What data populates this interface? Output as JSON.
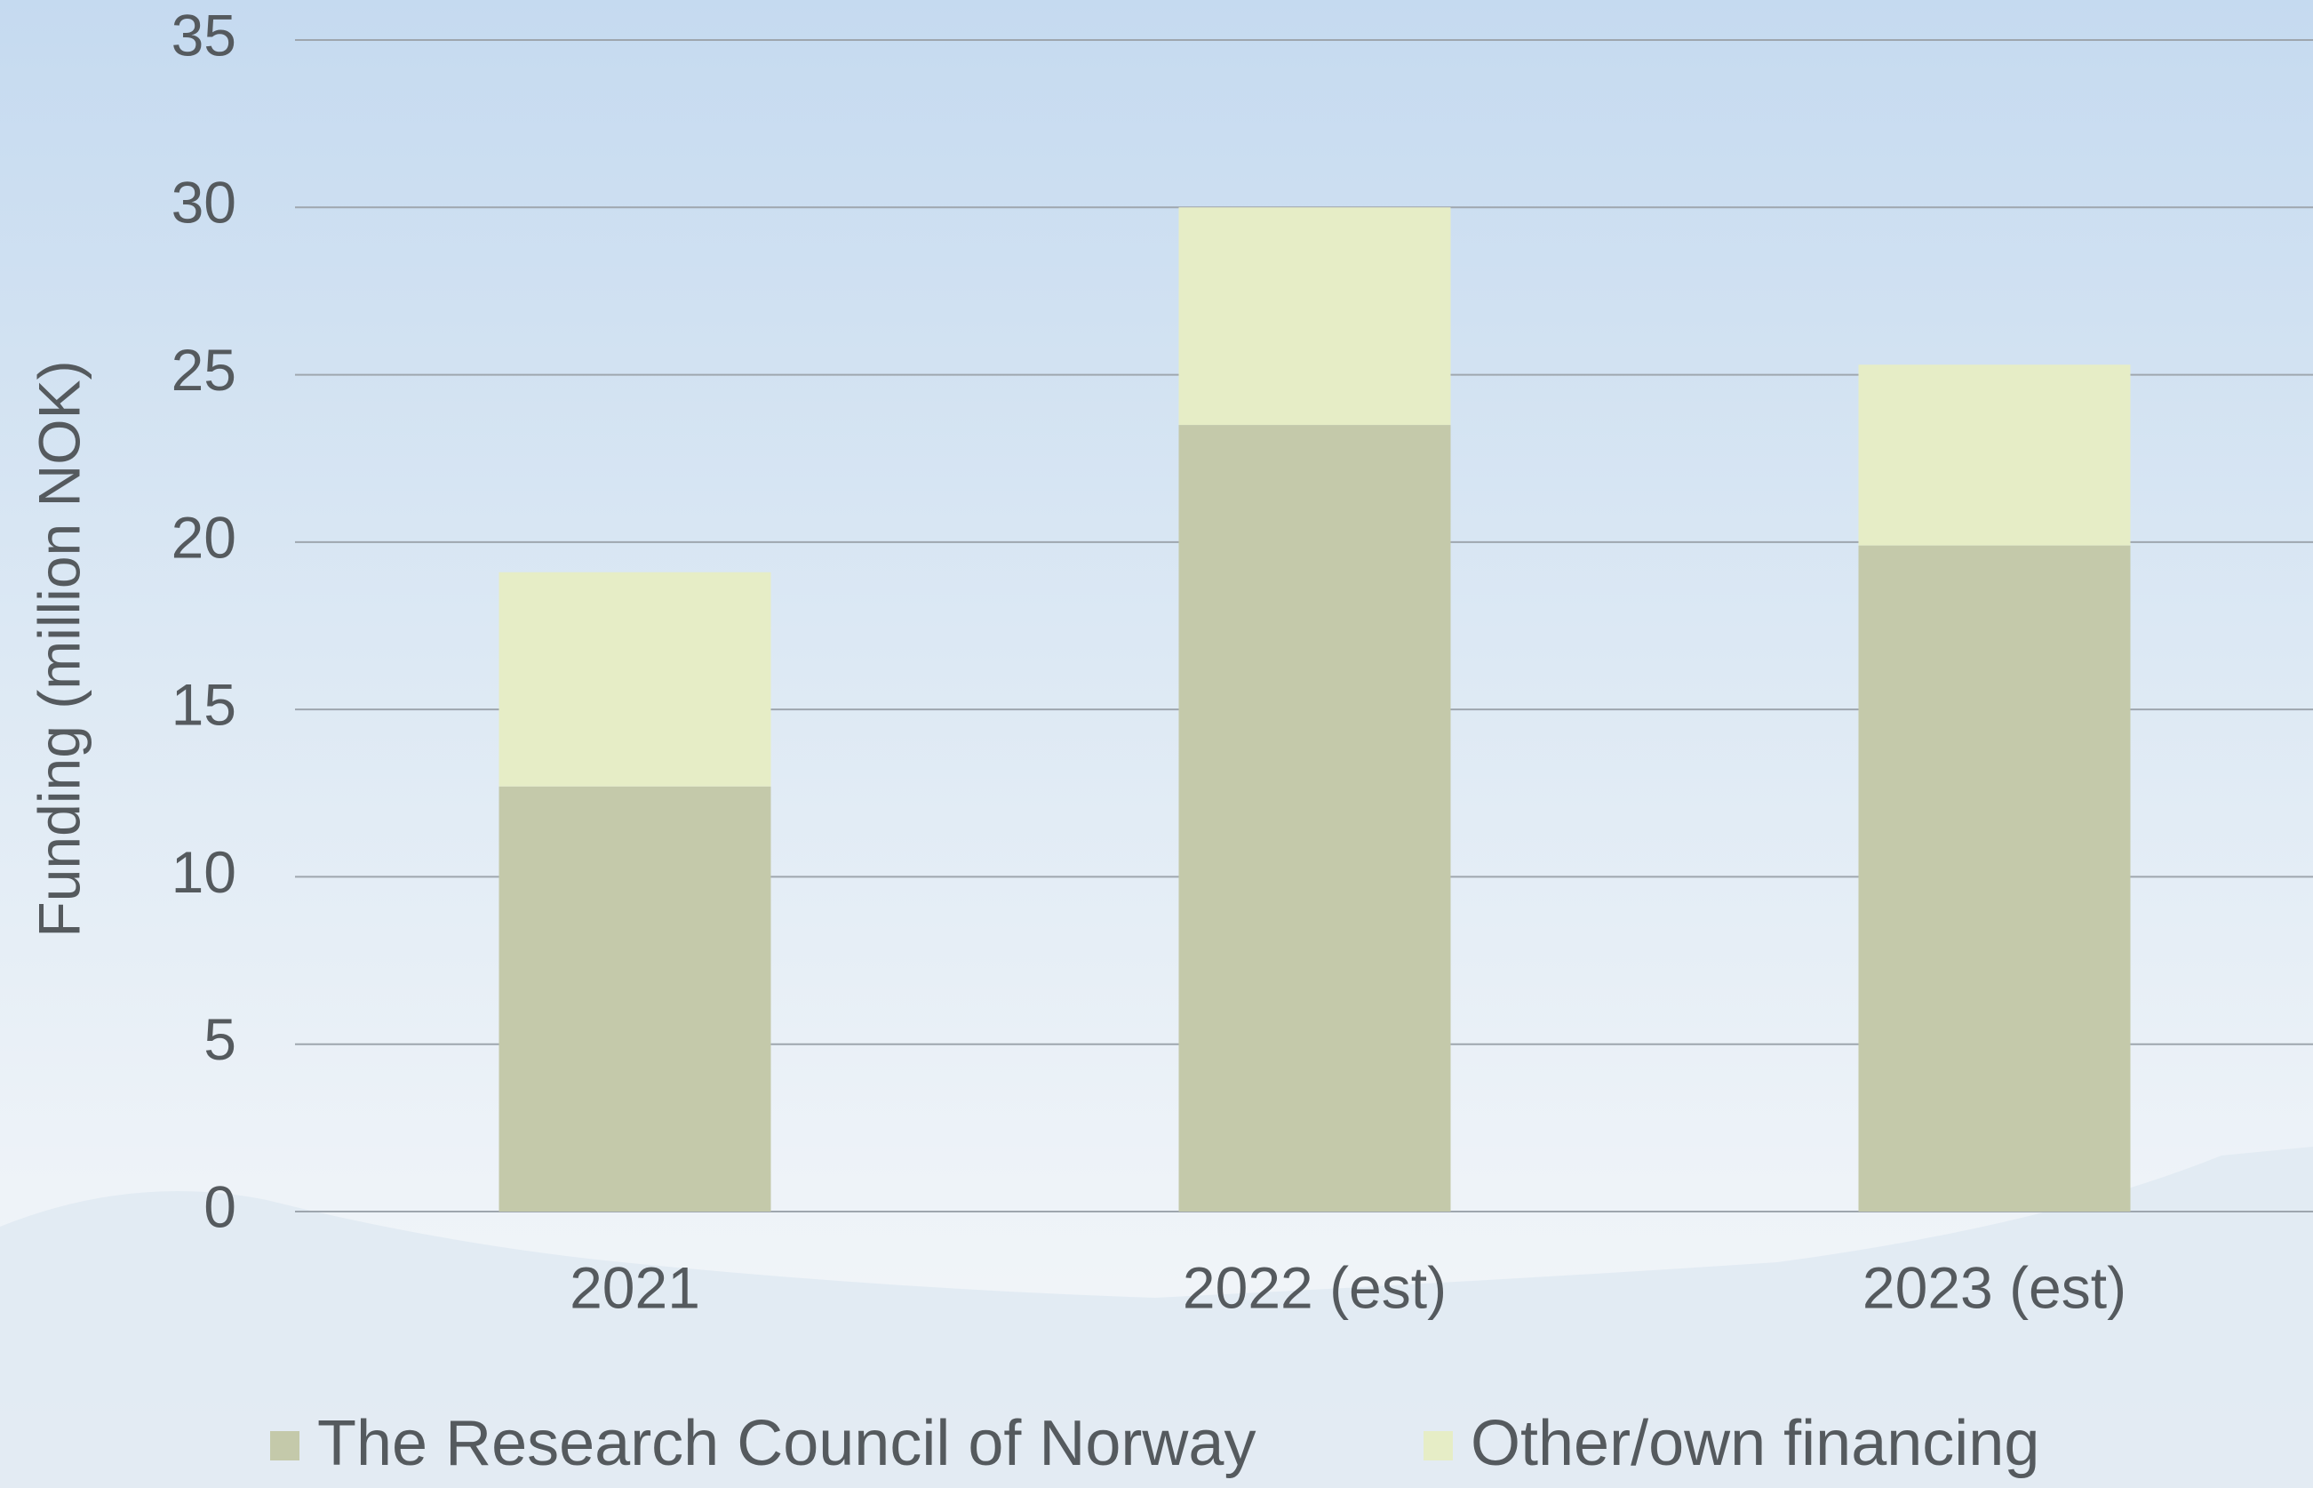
{
  "chart_data": {
    "type": "stacked_bar",
    "y_label": "Funding (million NOK)",
    "categories": [
      "2021",
      "2022 (est)",
      "2023 (est)"
    ],
    "series": [
      {
        "name": "The Research Council of Norway",
        "color": "#c4c9aa",
        "values": [
          12.7,
          23.5,
          19.9
        ]
      },
      {
        "name": "Other/own financing",
        "color": "#e6edc6",
        "values": [
          6.4,
          6.5,
          5.4
        ]
      }
    ],
    "ylim": [
      0,
      35
    ],
    "yticks": [
      0,
      5,
      10,
      15,
      20,
      25,
      30,
      35
    ],
    "grid": true,
    "legend": "bottom"
  }
}
